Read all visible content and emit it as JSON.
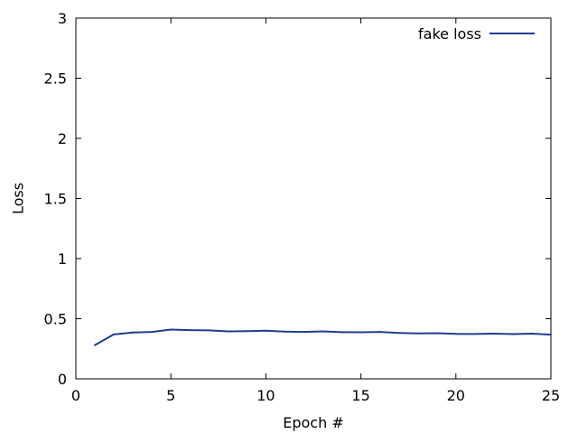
{
  "chart_data": {
    "type": "line",
    "title": "",
    "xlabel": "Epoch #",
    "ylabel": "Loss",
    "xlim": [
      0,
      25
    ],
    "ylim": [
      0,
      3
    ],
    "x_ticks": [
      "0",
      "5",
      "10",
      "15",
      "20",
      "25"
    ],
    "y_ticks": [
      "0",
      "0.5",
      "1",
      "1.5",
      "2",
      "2.5",
      "3"
    ],
    "grid": false,
    "legend_position": "top-right",
    "series": [
      {
        "name": "fake loss",
        "color": "#1f3f8f",
        "x": [
          1,
          2,
          3,
          4,
          5,
          6,
          7,
          8,
          9,
          10,
          11,
          12,
          13,
          14,
          15,
          16,
          17,
          18,
          19,
          20,
          21,
          22,
          23,
          24,
          25
        ],
        "y": [
          0.28,
          0.37,
          0.385,
          0.39,
          0.41,
          0.405,
          0.403,
          0.395,
          0.397,
          0.4,
          0.393,
          0.39,
          0.395,
          0.388,
          0.387,
          0.39,
          0.382,
          0.378,
          0.38,
          0.374,
          0.373,
          0.376,
          0.372,
          0.376,
          0.368
        ]
      }
    ]
  }
}
